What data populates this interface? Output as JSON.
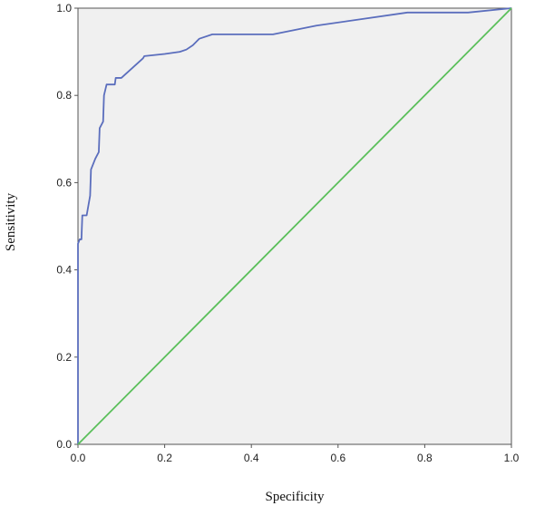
{
  "chart_data": {
    "type": "line",
    "title": "",
    "xlabel": "Specificity",
    "ylabel": "Sensitivity",
    "xlim": [
      0.0,
      1.0
    ],
    "ylim": [
      0.0,
      1.0
    ],
    "x_ticks": [
      "0.0",
      "0.2",
      "0.4",
      "0.6",
      "0.8",
      "1.0"
    ],
    "y_ticks": [
      "0.0",
      "0.2",
      "0.4",
      "0.6",
      "0.8",
      "1.0"
    ],
    "grid": false,
    "legend": "none",
    "plot_background": "#f0f0f0",
    "series": [
      {
        "color": "#5b6ebd",
        "points": [
          [
            0.0,
            0.0
          ],
          [
            0.0,
            0.46
          ],
          [
            0.004,
            0.47
          ],
          [
            0.008,
            0.47
          ],
          [
            0.01,
            0.525
          ],
          [
            0.02,
            0.525
          ],
          [
            0.028,
            0.57
          ],
          [
            0.03,
            0.63
          ],
          [
            0.04,
            0.655
          ],
          [
            0.048,
            0.67
          ],
          [
            0.05,
            0.725
          ],
          [
            0.058,
            0.74
          ],
          [
            0.06,
            0.8
          ],
          [
            0.066,
            0.825
          ],
          [
            0.085,
            0.825
          ],
          [
            0.087,
            0.84
          ],
          [
            0.1,
            0.84
          ],
          [
            0.15,
            0.885
          ],
          [
            0.153,
            0.89
          ],
          [
            0.2,
            0.895
          ],
          [
            0.235,
            0.9
          ],
          [
            0.25,
            0.905
          ],
          [
            0.265,
            0.915
          ],
          [
            0.28,
            0.93
          ],
          [
            0.31,
            0.94
          ],
          [
            0.45,
            0.94
          ],
          [
            0.55,
            0.96
          ],
          [
            0.76,
            0.99
          ],
          [
            0.9,
            0.99
          ],
          [
            1.0,
            1.0
          ]
        ]
      },
      {
        "color": "#5abf5a",
        "points": [
          [
            0.0,
            0.0
          ],
          [
            1.0,
            1.0
          ]
        ]
      }
    ]
  }
}
